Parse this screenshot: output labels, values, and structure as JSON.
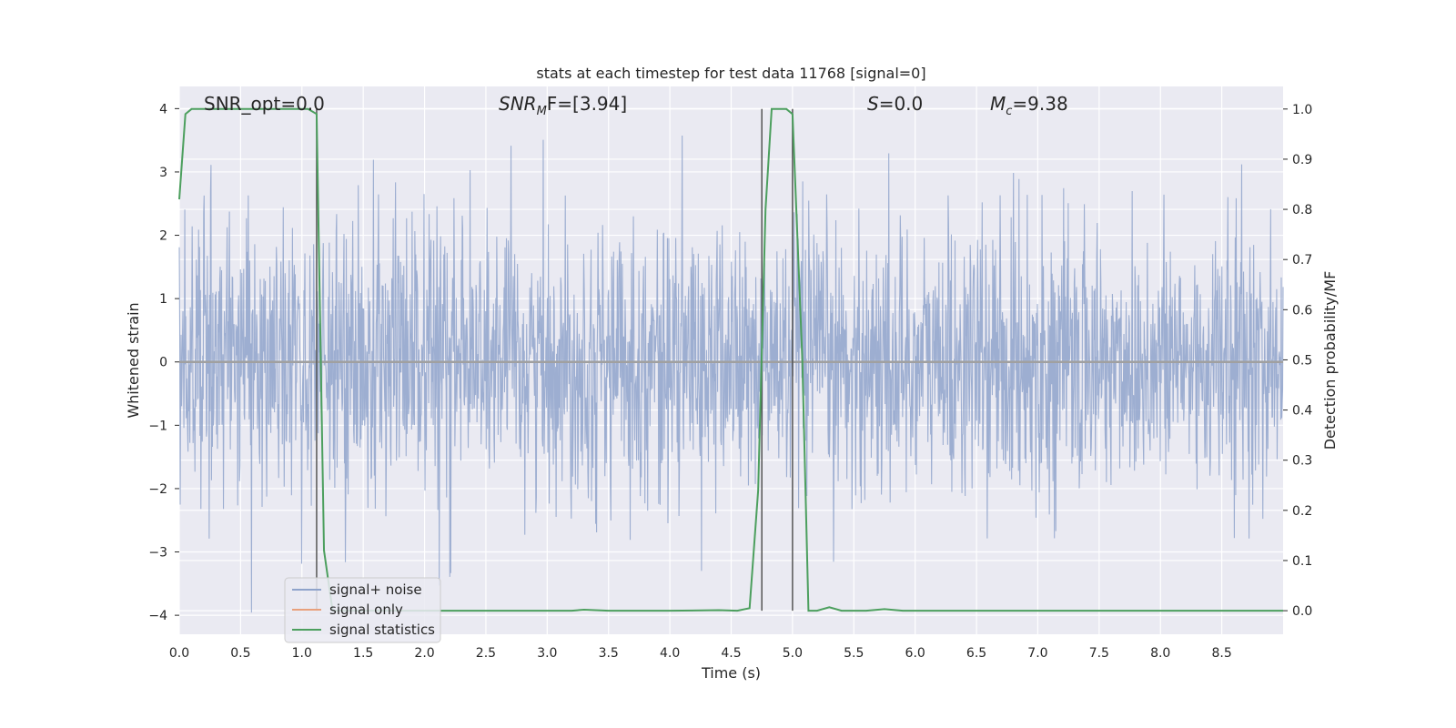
{
  "chart_data": {
    "type": "line",
    "title": "stats at each timestep for test data 11768 [signal=0]",
    "xlabel": "Time (s)",
    "ylabel": "Whitened strain",
    "y2label": "Detection probability/MF",
    "xlim": [
      0,
      9
    ],
    "ylim": [
      -4.3,
      4.35
    ],
    "y2lim": [
      -0.047,
      1.045
    ],
    "xticks": [
      "0.0",
      "0.5",
      "1.0",
      "1.5",
      "2.0",
      "2.5",
      "3.0",
      "3.5",
      "4.0",
      "4.5",
      "5.0",
      "5.5",
      "6.0",
      "6.5",
      "7.0",
      "7.5",
      "8.0",
      "8.5"
    ],
    "yticks": [
      "−4",
      "−3",
      "−2",
      "−1",
      "0",
      "1",
      "2",
      "3",
      "4"
    ],
    "y2ticks": [
      "0.0",
      "0.1",
      "0.2",
      "0.3",
      "0.4",
      "0.5",
      "0.6",
      "0.7",
      "0.8",
      "0.9",
      "1.0"
    ],
    "annotations": {
      "snr_opt": "SNR_opt=0.0",
      "snr_mf_main": "SNR",
      "snr_mf_sub": "M",
      "snr_mf_tail": "F=[3.94]",
      "s_main": "S",
      "s_tail": "=0.0",
      "mc_main": "M",
      "mc_sub": "c",
      "mc_tail": "=9.38"
    },
    "legend": {
      "position": "lower-left",
      "entries": [
        "signal+ noise",
        "signal only",
        "signal statistics"
      ]
    },
    "grid": true,
    "series": [
      {
        "name": "signal+ noise",
        "color": "#8fa3cb",
        "kind": "noise",
        "sigma": 1.0,
        "range": [
          -4,
          4
        ]
      },
      {
        "name": "signal only",
        "color": "#e8a07c",
        "x": [
          0,
          9
        ],
        "y": [
          0,
          0
        ]
      },
      {
        "name": "signal statistics",
        "color": "#4c9f5e",
        "axis": "right",
        "x": [
          0,
          0.05,
          0.1,
          0.2,
          0.5,
          1.0,
          1.05,
          1.12,
          1.18,
          1.25,
          1.5,
          2.0,
          3.0,
          3.2,
          3.3,
          3.5,
          4.0,
          4.4,
          4.55,
          4.65,
          4.72,
          4.78,
          4.83,
          4.9,
          4.95,
          5.0,
          5.08,
          5.13,
          5.2,
          5.3,
          5.4,
          5.6,
          5.75,
          5.9,
          6.5,
          9.0
        ],
        "y": [
          0.82,
          0.99,
          1.0,
          1.0,
          1.0,
          1.0,
          1.0,
          0.99,
          0.12,
          0.0,
          0.0,
          0.0,
          0.0,
          0.0,
          0.002,
          0.0,
          0.0,
          0.001,
          0.0,
          0.005,
          0.24,
          0.8,
          1.0,
          1.0,
          1.0,
          0.99,
          0.5,
          0.0,
          0.0,
          0.007,
          0.0,
          0.0,
          0.003,
          0.0,
          0.0,
          0.0
        ]
      }
    ],
    "vlines": [
      {
        "x": 1.12,
        "y": [
          0.0,
          1.0
        ]
      },
      {
        "x": 4.75,
        "y": [
          0.0,
          1.0
        ]
      },
      {
        "x": 5.0,
        "y": [
          0.0,
          1.0
        ]
      }
    ]
  }
}
